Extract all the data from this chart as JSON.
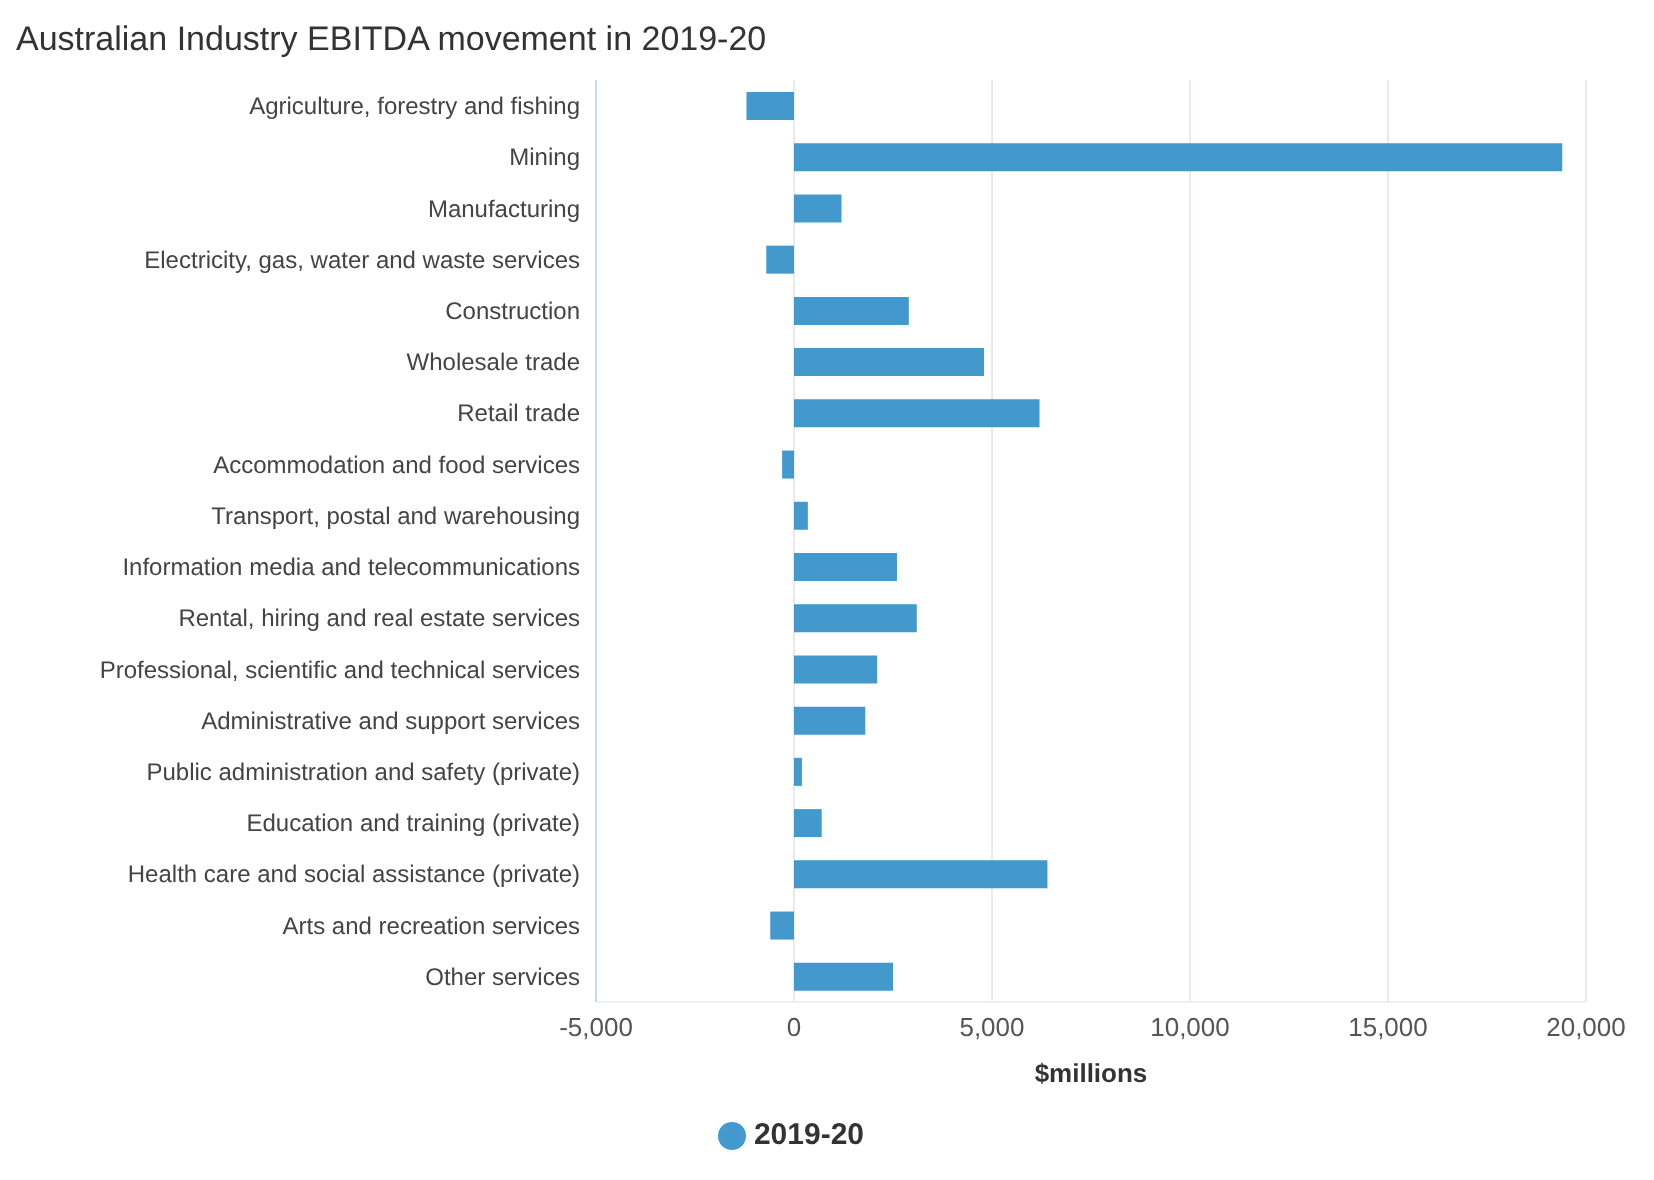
{
  "chart_data": {
    "type": "bar",
    "orientation": "horizontal",
    "title": "Australian Industry EBITDA movement in 2019-20",
    "xlabel": "$millions",
    "categories": [
      "Agriculture, forestry and fishing",
      "Mining",
      "Manufacturing",
      "Electricity, gas, water and waste services",
      "Construction",
      "Wholesale trade",
      "Retail trade",
      "Accommodation and food services",
      "Transport, postal and warehousing",
      "Information media and telecommunications",
      "Rental, hiring and real estate services",
      "Professional, scientific and technical services",
      "Administrative and support services",
      "Public administration and safety (private)",
      "Education and training (private)",
      "Health care and social assistance (private)",
      "Arts and recreation services",
      "Other services"
    ],
    "series": [
      {
        "name": "2019-20",
        "color": "#4499cc",
        "values": [
          -1200,
          19400,
          1200,
          -700,
          2900,
          4800,
          6200,
          -300,
          350,
          2600,
          3100,
          2100,
          1800,
          200,
          700,
          6400,
          -600,
          2500
        ]
      }
    ],
    "xlim": [
      -5000,
      20000
    ],
    "xticks": [
      {
        "value": -5000,
        "label": "-5,000"
      },
      0,
      {
        "value": 5000,
        "label": "5,000"
      },
      {
        "value": 10000,
        "label": "10,000"
      },
      {
        "value": 15000,
        "label": "15,000"
      },
      {
        "value": 20000,
        "label": "20,000"
      }
    ],
    "grid": "x",
    "legend": "bottom",
    "marker": "circle"
  }
}
